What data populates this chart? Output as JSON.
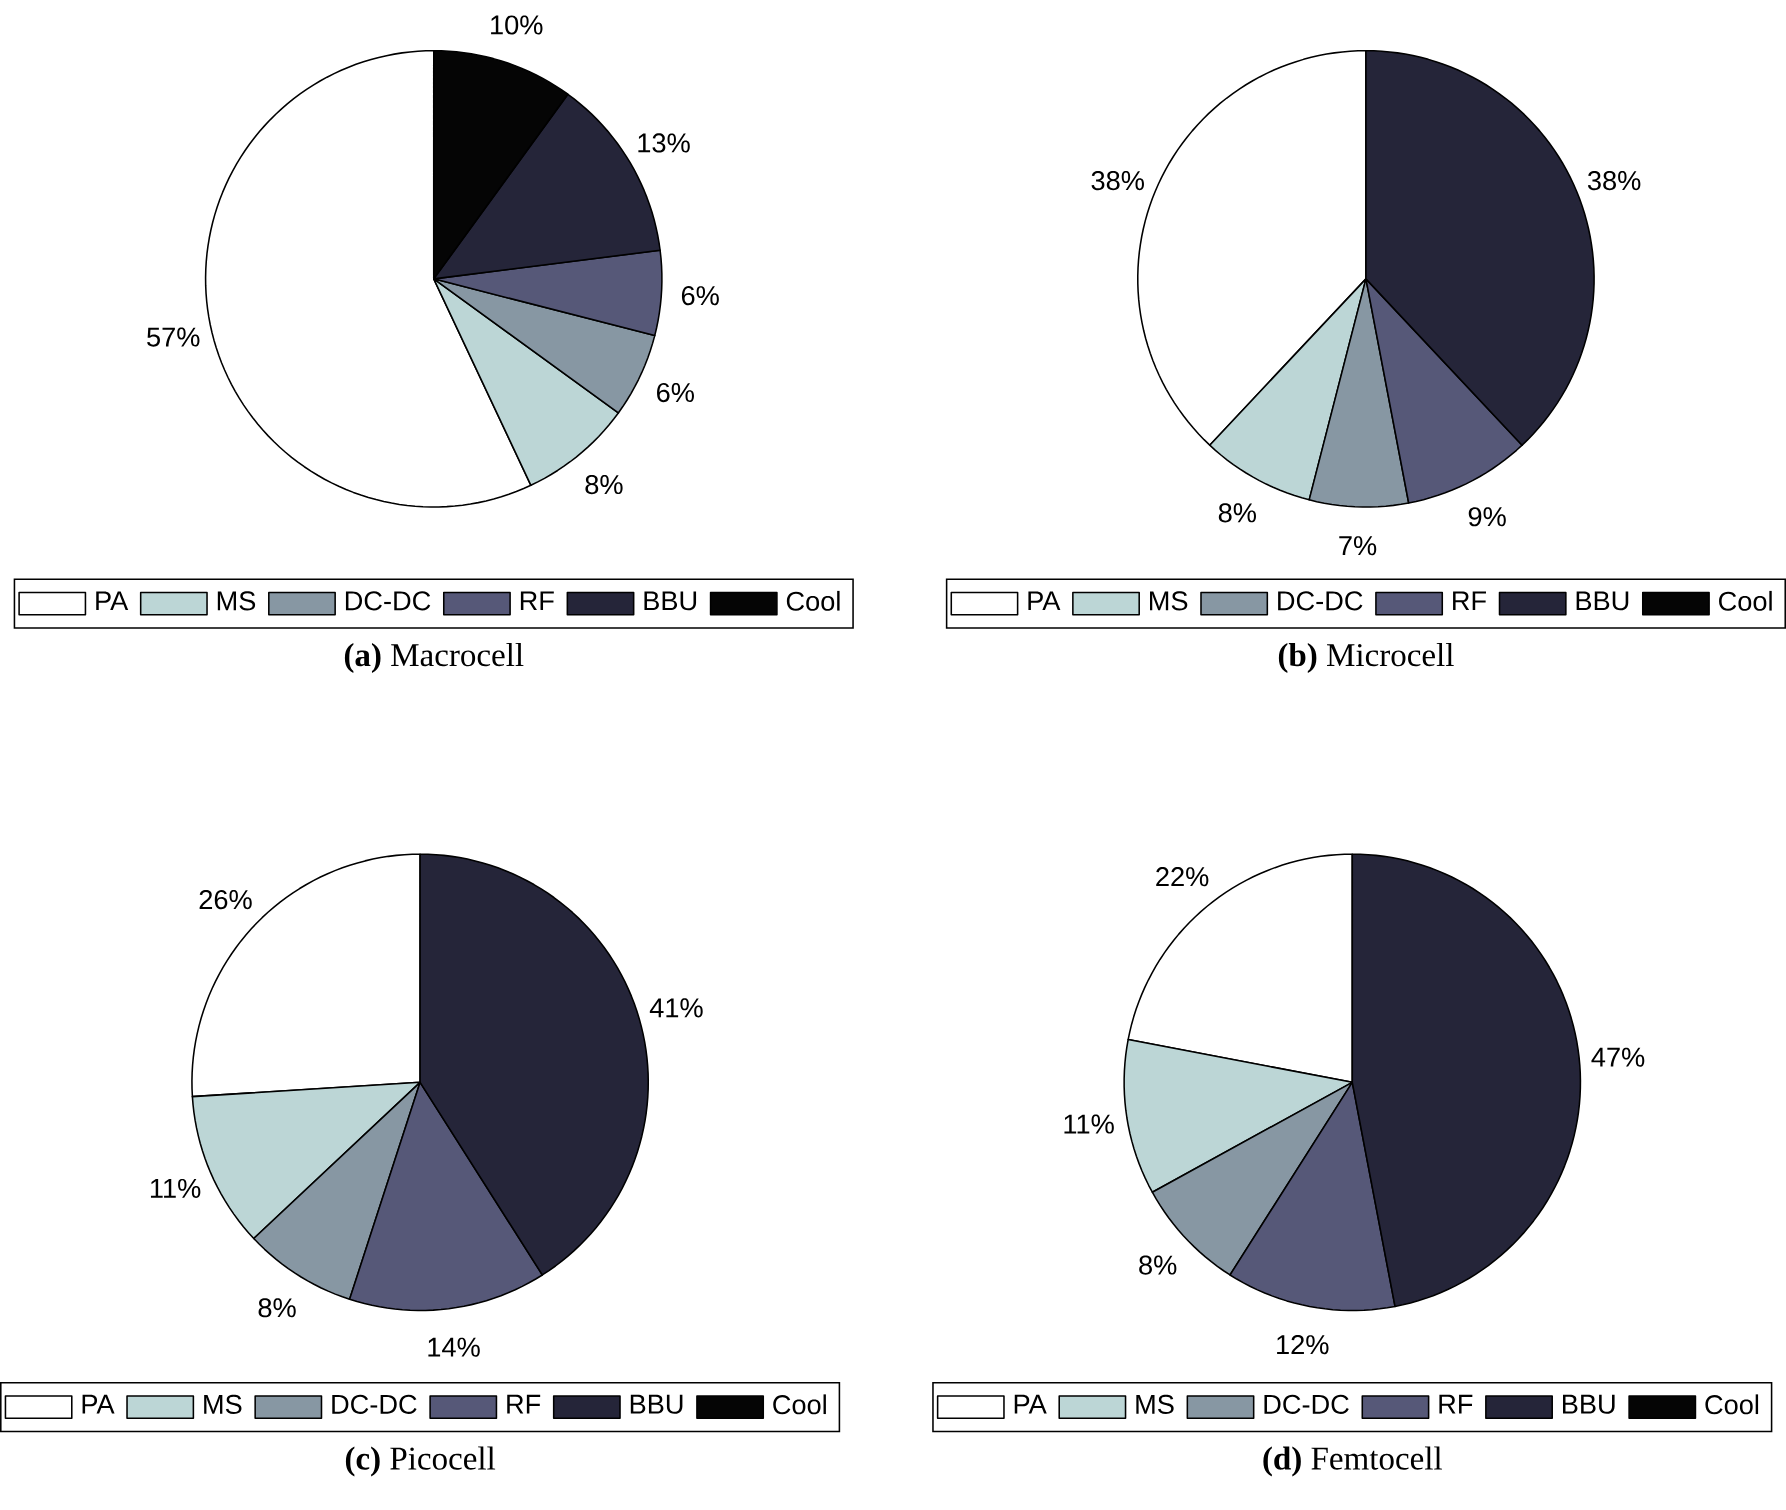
{
  "chart_data": [
    {
      "type": "pie",
      "title": "**(a)** Macrocell",
      "categories": [
        "PA",
        "MS",
        "DC-DC",
        "RF",
        "BBU",
        "Cool"
      ],
      "values": [
        57,
        8,
        6,
        6,
        13,
        10
      ],
      "colors": [
        "#ffffff",
        "#bcd6d6",
        "#8797a3",
        "#565878",
        "#252539",
        "#050505"
      ],
      "value_labels": [
        "57%",
        "8%",
        "6%",
        "6%",
        "13%",
        "10%"
      ],
      "legend": "bottom"
    },
    {
      "type": "pie",
      "title": "**(b)** Microcell",
      "categories": [
        "PA",
        "MS",
        "DC-DC",
        "RF",
        "BBU",
        "Cool"
      ],
      "values": [
        38,
        8,
        7,
        9,
        38,
        0
      ],
      "colors": [
        "#ffffff",
        "#bcd6d6",
        "#8797a3",
        "#565878",
        "#252539",
        "#050505"
      ],
      "value_labels": [
        "38%",
        "8%",
        "7%",
        "9%",
        "38%",
        null
      ],
      "legend": "bottom"
    },
    {
      "type": "pie",
      "title": "**(c)** Picocell",
      "categories": [
        "PA",
        "MS",
        "DC-DC",
        "RF",
        "BBU",
        "Cool"
      ],
      "values": [
        26,
        11,
        8,
        14,
        41,
        0
      ],
      "colors": [
        "#ffffff",
        "#bcd6d6",
        "#8797a3",
        "#565878",
        "#252539",
        "#050505"
      ],
      "value_labels": [
        "26%",
        "11%",
        "8%",
        "14%",
        "41%",
        null
      ],
      "legend": "bottom"
    },
    {
      "type": "pie",
      "title": "**(d)** Femtocell",
      "categories": [
        "PA",
        "MS",
        "DC-DC",
        "RF",
        "BBU",
        "Cool"
      ],
      "values": [
        22,
        11,
        8,
        12,
        47,
        0
      ],
      "colors": [
        "#ffffff",
        "#bcd6d6",
        "#8797a3",
        "#565878",
        "#252539",
        "#050505"
      ],
      "value_labels": [
        "22%",
        "11%",
        "8%",
        "12%",
        "47%",
        null
      ],
      "legend": "bottom"
    }
  ]
}
